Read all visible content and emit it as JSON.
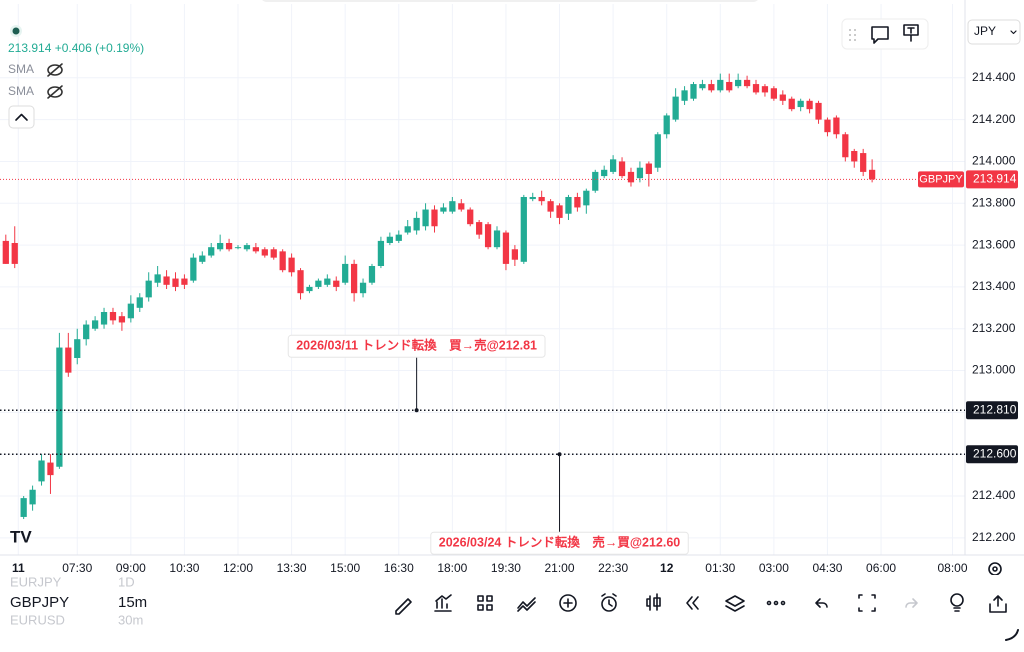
{
  "quote": "213.914 +0.406 (+0.19%)",
  "indicators": [
    "SMA",
    "SMA"
  ],
  "currency": "JPY",
  "watchlist": [
    {
      "symbol": "EURJPY",
      "interval": "1D"
    },
    {
      "symbol": "GBPJPY",
      "interval": "15m"
    },
    {
      "symbol": "EURUSD",
      "interval": "30m"
    }
  ],
  "chart_data": {
    "type": "candlestick",
    "open": [
      213.62,
      213.61,
      212.3,
      212.36,
      212.47,
      212.56,
      212.54,
      213.11,
      213.06,
      213.15,
      213.2,
      213.22,
      213.28,
      213.26,
      213.25,
      213.3,
      213.35,
      213.42,
      213.45,
      213.44,
      213.44,
      213.43,
      213.52,
      213.55,
      213.58,
      213.61,
      213.59,
      213.58,
      213.59,
      213.58,
      213.58,
      213.57,
      213.54,
      213.48,
      213.38,
      213.4,
      213.41,
      213.43,
      213.42,
      213.51,
      213.37,
      213.42,
      213.5,
      213.61,
      213.62,
      213.66,
      213.67,
      213.69,
      213.77,
      213.76,
      213.76,
      213.8,
      213.77,
      213.71,
      213.7,
      213.59,
      213.66,
      213.58,
      213.52,
      213.82,
      213.83,
      213.81,
      213.79,
      213.75,
      213.83,
      213.79,
      213.86,
      213.93,
      213.95,
      214.0,
      213.95,
      213.92,
      213.99,
      213.97,
      214.13,
      214.2,
      214.29,
      214.3,
      214.35,
      214.37,
      214.34,
      214.38,
      214.36,
      214.39,
      214.37,
      214.36,
      214.35,
      214.32,
      214.3,
      214.26,
      214.29,
      214.28,
      214.2,
      214.21,
      214.13,
      214.05,
      214.04,
      213.96
    ],
    "high": [
      213.65,
      213.69,
      212.4,
      212.45,
      212.6,
      212.6,
      213.18,
      213.18,
      213.2,
      213.24,
      213.26,
      213.3,
      213.3,
      213.28,
      213.36,
      213.37,
      213.47,
      213.5,
      213.48,
      213.47,
      213.46,
      213.56,
      213.57,
      213.61,
      213.65,
      213.63,
      213.6,
      213.61,
      213.61,
      213.59,
      213.59,
      213.58,
      213.56,
      213.49,
      213.41,
      213.44,
      213.46,
      213.45,
      213.55,
      213.53,
      213.44,
      213.51,
      213.64,
      213.66,
      213.67,
      213.72,
      213.76,
      213.8,
      213.79,
      213.8,
      213.83,
      213.82,
      213.78,
      213.72,
      213.71,
      213.69,
      213.67,
      213.6,
      213.84,
      213.85,
      213.86,
      213.82,
      213.8,
      213.84,
      213.85,
      213.87,
      213.96,
      213.98,
      214.03,
      214.02,
      213.97,
      214.0,
      214.0,
      214.14,
      214.23,
      214.35,
      214.36,
      214.38,
      214.39,
      214.39,
      214.42,
      214.42,
      214.42,
      214.41,
      214.39,
      214.37,
      214.36,
      214.34,
      214.31,
      214.3,
      214.3,
      214.29,
      214.21,
      214.22,
      214.14,
      214.06,
      214.06,
      214.01
    ],
    "low": [
      213.51,
      213.49,
      212.29,
      212.33,
      212.45,
      212.41,
      212.53,
      212.97,
      213.03,
      213.12,
      213.19,
      213.2,
      213.22,
      213.19,
      213.23,
      213.28,
      213.33,
      213.4,
      213.39,
      213.38,
      213.39,
      213.42,
      213.51,
      213.54,
      213.57,
      213.57,
      213.58,
      213.57,
      213.56,
      213.54,
      213.53,
      213.47,
      213.45,
      213.34,
      213.37,
      213.39,
      213.4,
      213.38,
      213.41,
      213.33,
      213.35,
      213.41,
      213.49,
      213.6,
      213.61,
      213.65,
      213.65,
      213.67,
      213.66,
      213.75,
      213.75,
      213.76,
      213.69,
      213.63,
      213.58,
      213.58,
      213.48,
      213.5,
      213.51,
      213.81,
      213.79,
      213.73,
      213.7,
      213.72,
      213.76,
      213.75,
      213.85,
      213.92,
      213.94,
      213.92,
      213.88,
      213.9,
      213.88,
      213.95,
      214.11,
      214.19,
      214.27,
      214.29,
      214.34,
      214.33,
      214.33,
      214.33,
      214.35,
      214.35,
      214.32,
      214.31,
      214.29,
      214.27,
      214.24,
      214.24,
      214.23,
      214.18,
      214.12,
      214.11,
      214.0,
      213.97,
      213.93,
      213.9
    ],
    "close": [
      213.51,
      213.51,
      212.39,
      212.43,
      212.57,
      212.5,
      213.11,
      212.99,
      213.15,
      213.22,
      213.24,
      213.28,
      213.24,
      213.23,
      213.32,
      213.35,
      213.43,
      213.46,
      213.41,
      213.4,
      213.41,
      213.54,
      213.55,
      213.59,
      213.61,
      213.58,
      213.59,
      213.6,
      213.57,
      213.55,
      213.54,
      213.48,
      213.47,
      213.37,
      213.4,
      213.43,
      213.44,
      213.4,
      213.51,
      213.37,
      213.42,
      213.5,
      213.62,
      213.64,
      213.65,
      213.69,
      213.73,
      213.77,
      213.69,
      213.78,
      213.81,
      213.77,
      213.7,
      213.65,
      213.59,
      213.67,
      213.51,
      213.53,
      213.83,
      213.83,
      213.81,
      213.76,
      213.73,
      213.83,
      213.78,
      213.86,
      213.95,
      213.96,
      214.01,
      213.93,
      213.9,
      213.97,
      213.94,
      214.13,
      214.22,
      214.31,
      214.34,
      214.37,
      214.37,
      214.34,
      214.39,
      214.34,
      214.39,
      214.36,
      214.33,
      214.33,
      214.3,
      214.29,
      214.25,
      214.29,
      214.25,
      214.2,
      214.14,
      214.13,
      214.02,
      214.0,
      213.95,
      213.914
    ],
    "up_color": "#22ab94",
    "down_color": "#f23645",
    "xlim": [
      -0.65,
      107.4
    ],
    "xticks": [
      {
        "value": 1.4,
        "label": "11"
      },
      {
        "value": 8,
        "label": "07:30"
      },
      {
        "value": 14,
        "label": "09:00"
      },
      {
        "value": 20,
        "label": "10:30"
      },
      {
        "value": 26,
        "label": "12:00"
      },
      {
        "value": 32,
        "label": "13:30"
      },
      {
        "value": 38,
        "label": "15:00"
      },
      {
        "value": 44,
        "label": "16:30"
      },
      {
        "value": 50,
        "label": "18:00"
      },
      {
        "value": 56,
        "label": "19:30"
      },
      {
        "value": 62,
        "label": "21:00"
      },
      {
        "value": 68,
        "label": "22:30"
      },
      {
        "value": 74,
        "label": "12"
      },
      {
        "value": 80,
        "label": "01:30"
      },
      {
        "value": 86,
        "label": "03:00"
      },
      {
        "value": 92,
        "label": "04:30"
      },
      {
        "value": 98,
        "label": "06:00"
      },
      {
        "value": 106,
        "label": "08:00"
      }
    ],
    "ylim": [
      212.118,
      214.772
    ],
    "yticks": [
      {
        "value": 212.2,
        "label": "212.200"
      },
      {
        "value": 212.4,
        "label": "212.400"
      },
      {
        "value": 212.6,
        "label": "212.600"
      },
      {
        "value": 212.8,
        "label": "212.800"
      },
      {
        "value": 213.0,
        "label": "213.000"
      },
      {
        "value": 213.2,
        "label": "213.200"
      },
      {
        "value": 213.4,
        "label": "213.400"
      },
      {
        "value": 213.6,
        "label": "213.600"
      },
      {
        "value": 213.8,
        "label": "213.800"
      },
      {
        "value": 214.0,
        "label": "214.000"
      },
      {
        "value": 214.2,
        "label": "214.200"
      },
      {
        "value": 214.4,
        "label": "214.400"
      }
    ],
    "grid": true,
    "horizontal_lines": [
      {
        "value": 212.81,
        "label": "212.810",
        "note": "2026/03/11 トレンド転換　買→売@212.81",
        "x": 46,
        "note_side": "above"
      },
      {
        "value": 212.6,
        "label": "212.600",
        "note": "2026/03/24 トレンド転換　売→買@212.60",
        "x": 62,
        "note_side": "below"
      }
    ],
    "last_price": {
      "symbol": "GBPJPY",
      "value": 213.914,
      "label": "213.914"
    }
  }
}
